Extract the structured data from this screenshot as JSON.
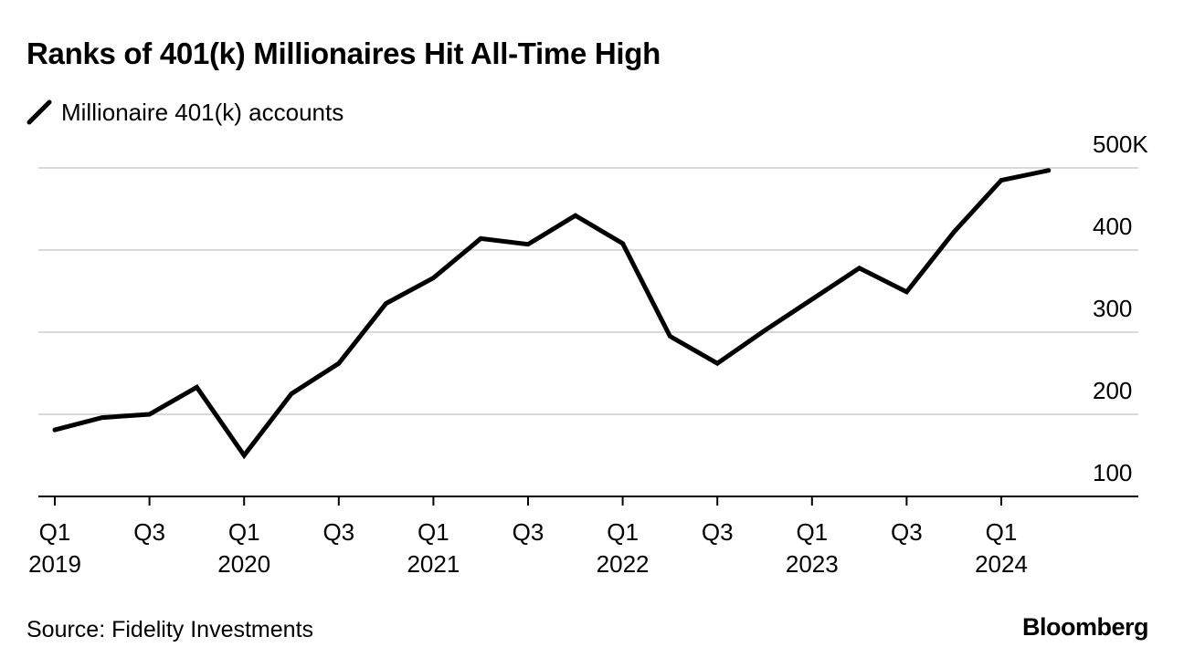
{
  "header": {
    "title": "Ranks of 401(k) Millionaires Hit All-Time High"
  },
  "footer": {
    "source": "Source: Fidelity Investments",
    "brand": "Bloomberg"
  },
  "colors": {
    "line": "#000000",
    "gridline": "#d9d9d9",
    "axis": "#000000"
  },
  "chart_data": {
    "type": "line",
    "title": "Ranks of 401(k) Millionaires Hit All-Time High",
    "xlabel": "",
    "ylabel": "",
    "ylim": [
      100,
      500
    ],
    "grid": true,
    "legend_position": "top-left",
    "y_ticks": [
      {
        "value": 100,
        "label": "100"
      },
      {
        "value": 200,
        "label": "200"
      },
      {
        "value": 300,
        "label": "300"
      },
      {
        "value": 400,
        "label": "400"
      },
      {
        "value": 500,
        "label": "500K"
      }
    ],
    "x_ticks": [
      {
        "index": 0,
        "quarter": "Q1",
        "year": "2019"
      },
      {
        "index": 2,
        "quarter": "Q3",
        "year": ""
      },
      {
        "index": 4,
        "quarter": "Q1",
        "year": "2020"
      },
      {
        "index": 6,
        "quarter": "Q3",
        "year": ""
      },
      {
        "index": 8,
        "quarter": "Q1",
        "year": "2021"
      },
      {
        "index": 10,
        "quarter": "Q3",
        "year": ""
      },
      {
        "index": 12,
        "quarter": "Q1",
        "year": "2022"
      },
      {
        "index": 14,
        "quarter": "Q3",
        "year": ""
      },
      {
        "index": 16,
        "quarter": "Q1",
        "year": "2023"
      },
      {
        "index": 18,
        "quarter": "Q3",
        "year": ""
      },
      {
        "index": 20,
        "quarter": "Q1",
        "year": "2024"
      }
    ],
    "categories": [
      "Q1 2019",
      "Q2 2019",
      "Q3 2019",
      "Q4 2019",
      "Q1 2020",
      "Q2 2020",
      "Q3 2020",
      "Q4 2020",
      "Q1 2021",
      "Q2 2021",
      "Q3 2021",
      "Q4 2021",
      "Q1 2022",
      "Q2 2022",
      "Q3 2022",
      "Q4 2022",
      "Q1 2023",
      "Q2 2023",
      "Q3 2023",
      "Q4 2023",
      "Q1 2024",
      "Q2 2024"
    ],
    "series": [
      {
        "name": "Millionaire 401(k) accounts",
        "color": "#000000",
        "values": [
          181,
          196,
          200,
          233,
          150,
          225,
          262,
          335,
          366,
          414,
          407,
          442,
          408,
          295,
          262,
          302,
          340,
          378,
          349,
          422,
          485,
          497
        ]
      }
    ]
  }
}
